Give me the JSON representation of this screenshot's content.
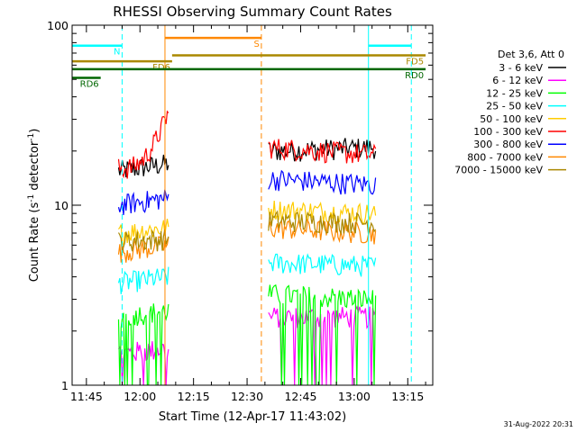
{
  "chart_data": {
    "type": "line",
    "title": "RHESSI Observing Summary Count Rates",
    "xlabel": "Start Time (12-Apr-17 11:43:02)",
    "ylabel_prefix": "Count Rate (s",
    "ylabel_sup": "-1",
    "ylabel_suffix": " detector",
    "ylabel_sup2": "-1",
    "ylabel_close": ")",
    "y_scale": "log",
    "ylim": [
      1,
      100
    ],
    "xlim": [
      "11:41",
      "13:22"
    ],
    "x_ticks": [
      "11:45",
      "12:00",
      "12:15",
      "12:30",
      "12:45",
      "13:00",
      "13:15"
    ],
    "y_ticks": [
      "1",
      "10",
      "100"
    ],
    "legend_title": "Det 3,6, Att 0",
    "legend_placement": "right",
    "timestamp": "31-Aug-2022 20:31",
    "data_intervals": [
      [
        "11:54",
        "12:08"
      ],
      [
        "12:36",
        "13:06"
      ]
    ],
    "series": [
      {
        "name": "3 - 6 keV",
        "color": "#000000",
        "values": [
          [
            15.5,
            17
          ],
          [
            20,
            21
          ]
        ]
      },
      {
        "name": "6 - 12 keV",
        "color": "#ff00ff",
        "values": [
          [
            1.5,
            1.6
          ],
          [
            2.4,
            2.4
          ]
        ]
      },
      {
        "name": "12 - 25 keV",
        "color": "#00ff00",
        "values": [
          [
            2.4,
            2.6
          ],
          [
            3.2,
            3.0
          ]
        ]
      },
      {
        "name": "25 - 50 keV",
        "color": "#00ffff",
        "values": [
          [
            3.7,
            4.0
          ],
          [
            4.8,
            4.6
          ]
        ]
      },
      {
        "name": "50 - 100 keV",
        "color": "#ffcc00",
        "values": [
          [
            7.0,
            7.5
          ],
          [
            9.5,
            9.0
          ]
        ]
      },
      {
        "name": "100 - 300 keV",
        "color": "#ff0000",
        "values": [
          [
            16,
            33
          ],
          [
            21,
            19
          ]
        ]
      },
      {
        "name": "300 - 800 keV",
        "color": "#0000ff",
        "values": [
          [
            10,
            11
          ],
          [
            14,
            13
          ]
        ]
      },
      {
        "name": "800 - 7000 keV",
        "color": "#ff8800",
        "values": [
          [
            5.5,
            6
          ],
          [
            7.5,
            7.0
          ]
        ]
      },
      {
        "name": "7000 - 15000 keV",
        "color": "#aa8800",
        "values": [
          [
            6.3,
            6.5
          ],
          [
            8.2,
            8.0
          ]
        ]
      }
    ],
    "flags": [
      {
        "label": "S",
        "color": "#ff8800",
        "start": "12:07",
        "end": "12:34",
        "level": 85
      },
      {
        "label": "N",
        "color": "#00ffff",
        "start": "11:41",
        "end": "11:55",
        "level": 77,
        "second_start": "13:04",
        "second_end": "13:16"
      },
      {
        "label": "FD5",
        "color": "#aa8800",
        "start": "12:09",
        "end": "13:20",
        "level": 68
      },
      {
        "label": "FD6",
        "color": "#aa8800",
        "start": "11:41",
        "end": "12:09",
        "level": 63
      },
      {
        "label": "RD0",
        "color": "#006600",
        "start": "11:41",
        "end": "13:20",
        "level": 57
      },
      {
        "label": "RD6",
        "color": "#006600",
        "start": "11:41",
        "end": "11:49",
        "level": 51
      }
    ],
    "vertical_markers": [
      {
        "time": "11:41",
        "color": "#00ffff",
        "style": "solid"
      },
      {
        "time": "11:55",
        "color": "#00ffff",
        "style": "dashed"
      },
      {
        "time": "12:07",
        "color": "#ff8800",
        "style": "solid"
      },
      {
        "time": "12:34",
        "color": "#ff8800",
        "style": "dashed"
      },
      {
        "time": "13:04",
        "color": "#00ffff",
        "style": "solid"
      },
      {
        "time": "13:16",
        "color": "#00ffff",
        "style": "dashed"
      }
    ]
  }
}
